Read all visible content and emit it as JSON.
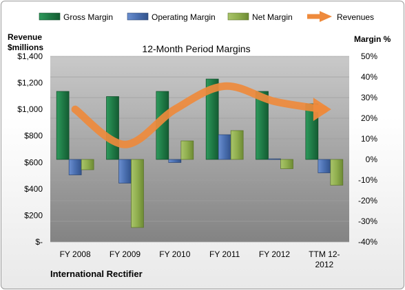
{
  "chart_data": {
    "type": "bar",
    "title": "12-Month Period Margins",
    "company": "International Rectifier",
    "left_axis_label_line1": "Revenue",
    "left_axis_label_line2": "$millions",
    "right_axis_label": "Margin %",
    "left_ticks": [
      "$-",
      "$200",
      "$400",
      "$600",
      "$800",
      "$1,000",
      "$1,200",
      "$1,400"
    ],
    "right_ticks": [
      "-40%",
      "-30%",
      "-20%",
      "-10%",
      "0%",
      "10%",
      "20%",
      "30%",
      "40%",
      "50%"
    ],
    "categories": [
      [
        "FY 2008"
      ],
      [
        "FY 2009"
      ],
      [
        "FY 2010"
      ],
      [
        "FY 2011"
      ],
      [
        "FY 2012"
      ],
      [
        "TTM 12-",
        "2012"
      ]
    ],
    "left_ylim": [
      0,
      1400
    ],
    "right_ylim": [
      -40,
      50
    ],
    "legend_position": "top",
    "series": [
      {
        "name": "Gross Margin",
        "axis": "right",
        "color": "#1f7a46",
        "values": [
          33,
          30.5,
          33,
          39,
          33,
          27
        ]
      },
      {
        "name": "Operating Margin",
        "axis": "right",
        "color": "#4a6fb0",
        "values": [
          -7.5,
          -11.5,
          -1.5,
          12,
          0.3,
          -6.5
        ]
      },
      {
        "name": "Net Margin",
        "axis": "right",
        "color": "#8fae4e",
        "values": [
          -5,
          -33,
          9,
          14,
          -4.5,
          -12.5
        ]
      },
      {
        "name": "Revenues",
        "axis": "left",
        "color": "#ee8a3c",
        "values": [
          1000,
          735,
          1000,
          1175,
          1060,
          1000
        ]
      }
    ]
  }
}
